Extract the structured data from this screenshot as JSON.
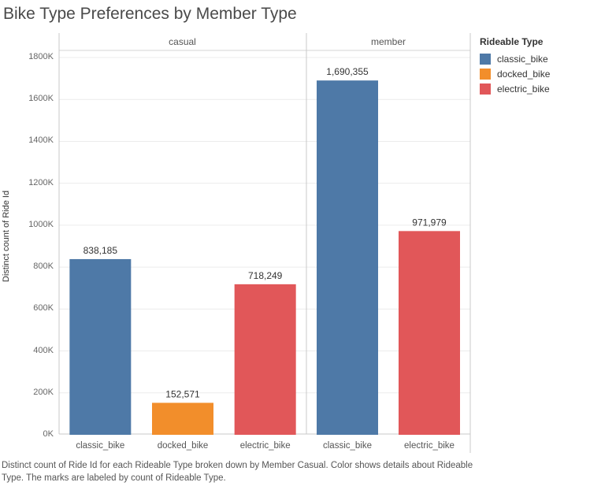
{
  "title": "Bike Type Preferences by Member Type",
  "caption": "Distinct count of Ride Id for each Rideable Type broken down by Member Casual.  Color shows details about Rideable Type.  The marks are labeled by count of Rideable Type.",
  "legend": {
    "title": "Rideable Type",
    "items": [
      {
        "label": "classic_bike",
        "color": "#4e79a7"
      },
      {
        "label": "docked_bike",
        "color": "#f28e2b"
      },
      {
        "label": "electric_bike",
        "color": "#e15759"
      }
    ]
  },
  "chart_data": {
    "type": "bar",
    "ylabel": "Distinct count of Ride Id",
    "ylim": [
      0,
      1800000
    ],
    "yticks": [
      {
        "value": 0,
        "label": "0K"
      },
      {
        "value": 200000,
        "label": "200K"
      },
      {
        "value": 400000,
        "label": "400K"
      },
      {
        "value": 600000,
        "label": "600K"
      },
      {
        "value": 800000,
        "label": "800K"
      },
      {
        "value": 1000000,
        "label": "1000K"
      },
      {
        "value": 1200000,
        "label": "1200K"
      },
      {
        "value": 1400000,
        "label": "1400K"
      },
      {
        "value": 1600000,
        "label": "1600K"
      },
      {
        "value": 1800000,
        "label": "1800K"
      }
    ],
    "panels": [
      {
        "name": "casual",
        "bars": [
          {
            "category": "classic_bike",
            "value": 838185,
            "label": "838,185",
            "color": "#4e79a7"
          },
          {
            "category": "docked_bike",
            "value": 152571,
            "label": "152,571",
            "color": "#f28e2b"
          },
          {
            "category": "electric_bike",
            "value": 718249,
            "label": "718,249",
            "color": "#e15759"
          }
        ]
      },
      {
        "name": "member",
        "bars": [
          {
            "category": "classic_bike",
            "value": 1690355,
            "label": "1,690,355",
            "color": "#4e79a7"
          },
          {
            "category": "electric_bike",
            "value": 971979,
            "label": "971,979",
            "color": "#e15759"
          }
        ]
      }
    ],
    "grid": true,
    "legend_position": "right"
  }
}
